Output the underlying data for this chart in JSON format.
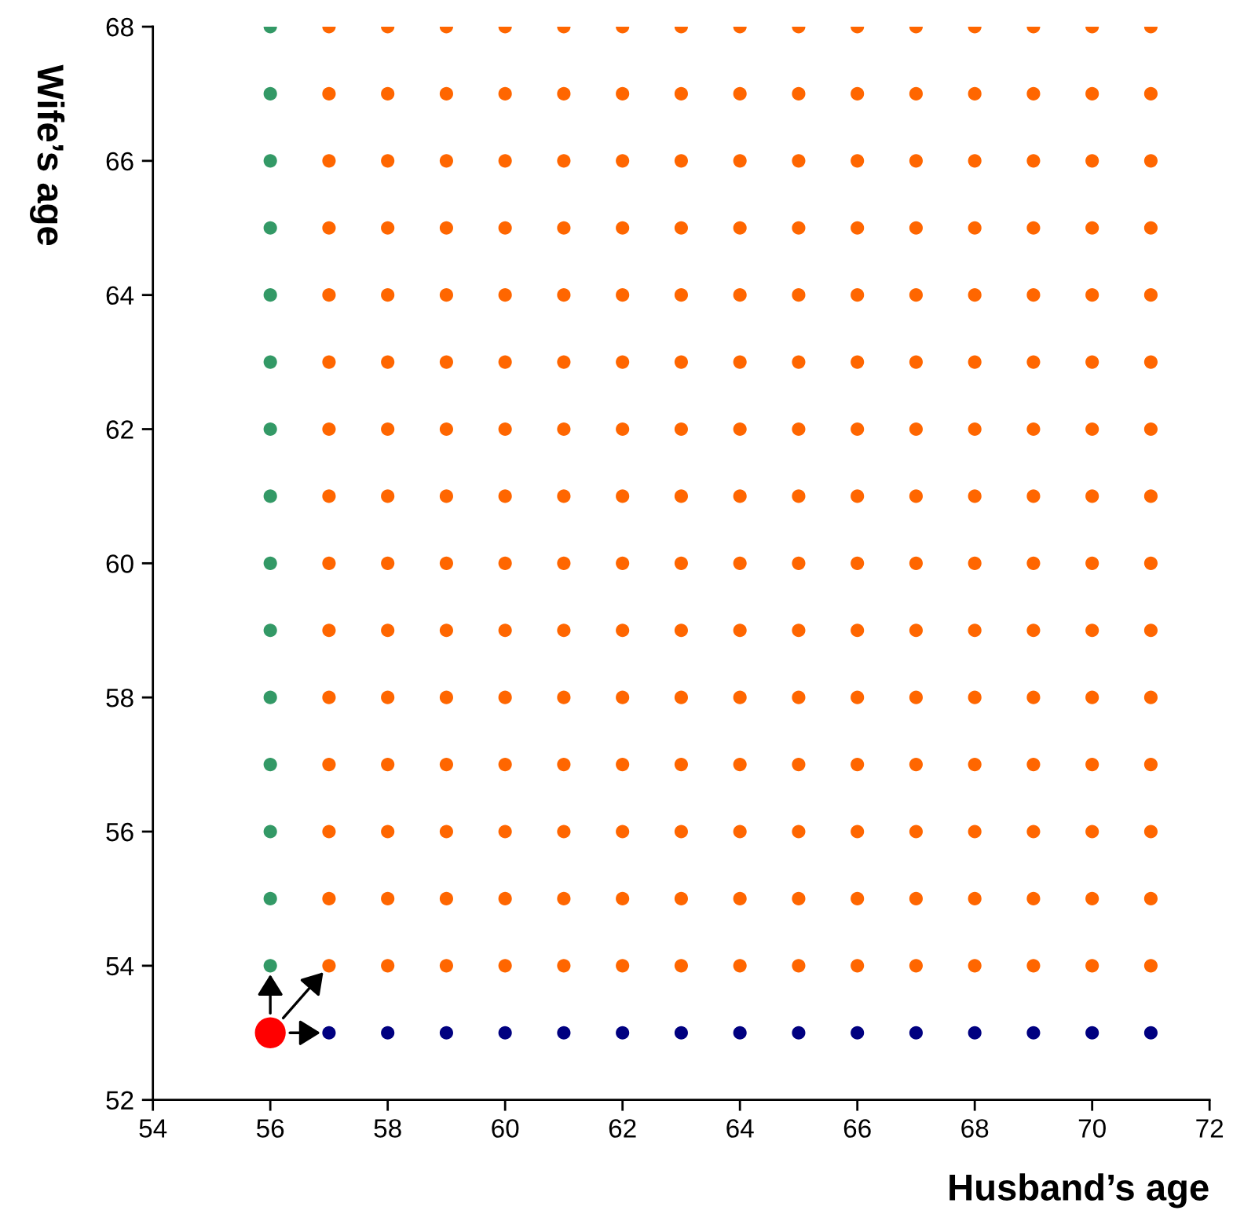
{
  "chart_data": {
    "type": "scatter",
    "xlabel": "Husband’s age",
    "ylabel": "Wife’s age",
    "xlim": [
      54,
      72
    ],
    "xticks": [
      54,
      56,
      58,
      60,
      62,
      64,
      66,
      68,
      70,
      72
    ],
    "ylim": [
      52,
      68
    ],
    "yticks": [
      52,
      54,
      56,
      58,
      60,
      62,
      64,
      66,
      68
    ],
    "grid": false,
    "legend": false,
    "marker": "circle",
    "series": [
      {
        "color": "#339966",
        "x": [
          56,
          56,
          56,
          56,
          56,
          56,
          56,
          56,
          56,
          56,
          56,
          56,
          56,
          56,
          56
        ],
        "values": [
          54,
          55,
          56,
          57,
          58,
          59,
          60,
          61,
          62,
          63,
          64,
          65,
          66,
          67,
          68
        ]
      },
      {
        "color": "#ff6600",
        "x": [
          57,
          58,
          59,
          60,
          61,
          62,
          63,
          64,
          65,
          66,
          67,
          68,
          69,
          70,
          71,
          57,
          58,
          59,
          60,
          61,
          62,
          63,
          64,
          65,
          66,
          67,
          68,
          69,
          70,
          71,
          57,
          58,
          59,
          60,
          61,
          62,
          63,
          64,
          65,
          66,
          67,
          68,
          69,
          70,
          71,
          57,
          58,
          59,
          60,
          61,
          62,
          63,
          64,
          65,
          66,
          67,
          68,
          69,
          70,
          71,
          57,
          58,
          59,
          60,
          61,
          62,
          63,
          64,
          65,
          66,
          67,
          68,
          69,
          70,
          71,
          57,
          58,
          59,
          60,
          61,
          62,
          63,
          64,
          65,
          66,
          67,
          68,
          69,
          70,
          71,
          57,
          58,
          59,
          60,
          61,
          62,
          63,
          64,
          65,
          66,
          67,
          68,
          69,
          70,
          71,
          57,
          58,
          59,
          60,
          61,
          62,
          63,
          64,
          65,
          66,
          67,
          68,
          69,
          70,
          71,
          57,
          58,
          59,
          60,
          61,
          62,
          63,
          64,
          65,
          66,
          67,
          68,
          69,
          70,
          71,
          57,
          58,
          59,
          60,
          61,
          62,
          63,
          64,
          65,
          66,
          67,
          68,
          69,
          70,
          71,
          57,
          58,
          59,
          60,
          61,
          62,
          63,
          64,
          65,
          66,
          67,
          68,
          69,
          70,
          71,
          57,
          58,
          59,
          60,
          61,
          62,
          63,
          64,
          65,
          66,
          67,
          68,
          69,
          70,
          71,
          57,
          58,
          59,
          60,
          61,
          62,
          63,
          64,
          65,
          66,
          67,
          68,
          69,
          70,
          71,
          57,
          58,
          59,
          60,
          61,
          62,
          63,
          64,
          65,
          66,
          67,
          68,
          69,
          70,
          71,
          57,
          58,
          59,
          60,
          61,
          62,
          63,
          64,
          65,
          66,
          67,
          68,
          69,
          70,
          71
        ],
        "values": [
          54,
          54,
          54,
          54,
          54,
          54,
          54,
          54,
          54,
          54,
          54,
          54,
          54,
          54,
          54,
          55,
          55,
          55,
          55,
          55,
          55,
          55,
          55,
          55,
          55,
          55,
          55,
          55,
          55,
          55,
          56,
          56,
          56,
          56,
          56,
          56,
          56,
          56,
          56,
          56,
          56,
          56,
          56,
          56,
          56,
          57,
          57,
          57,
          57,
          57,
          57,
          57,
          57,
          57,
          57,
          57,
          57,
          57,
          57,
          57,
          58,
          58,
          58,
          58,
          58,
          58,
          58,
          58,
          58,
          58,
          58,
          58,
          58,
          58,
          58,
          59,
          59,
          59,
          59,
          59,
          59,
          59,
          59,
          59,
          59,
          59,
          59,
          59,
          59,
          59,
          60,
          60,
          60,
          60,
          60,
          60,
          60,
          60,
          60,
          60,
          60,
          60,
          60,
          60,
          60,
          61,
          61,
          61,
          61,
          61,
          61,
          61,
          61,
          61,
          61,
          61,
          61,
          61,
          61,
          61,
          62,
          62,
          62,
          62,
          62,
          62,
          62,
          62,
          62,
          62,
          62,
          62,
          62,
          62,
          62,
          63,
          63,
          63,
          63,
          63,
          63,
          63,
          63,
          63,
          63,
          63,
          63,
          63,
          63,
          63,
          64,
          64,
          64,
          64,
          64,
          64,
          64,
          64,
          64,
          64,
          64,
          64,
          64,
          64,
          64,
          65,
          65,
          65,
          65,
          65,
          65,
          65,
          65,
          65,
          65,
          65,
          65,
          65,
          65,
          65,
          66,
          66,
          66,
          66,
          66,
          66,
          66,
          66,
          66,
          66,
          66,
          66,
          66,
          66,
          66,
          67,
          67,
          67,
          67,
          67,
          67,
          67,
          67,
          67,
          67,
          67,
          67,
          67,
          67,
          67,
          68,
          68,
          68,
          68,
          68,
          68,
          68,
          68,
          68,
          68,
          68,
          68,
          68,
          68,
          68
        ]
      },
      {
        "color": "#000080",
        "x": [
          57,
          58,
          59,
          60,
          61,
          62,
          63,
          64,
          65,
          66,
          67,
          68,
          69,
          70,
          71
        ],
        "values": [
          53,
          53,
          53,
          53,
          53,
          53,
          53,
          53,
          53,
          53,
          53,
          53,
          53,
          53,
          53
        ]
      },
      {
        "color": "#ff0000",
        "x": [
          56
        ],
        "values": [
          53
        ]
      }
    ]
  }
}
